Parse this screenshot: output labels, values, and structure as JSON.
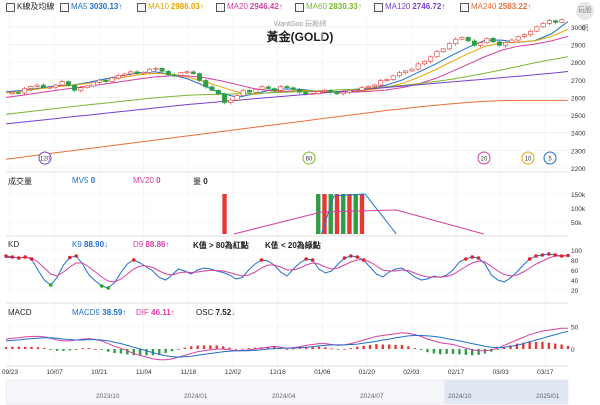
{
  "legend": {
    "title": "K線及均線",
    "items": [
      {
        "name": "MA5",
        "value": "3030.13↑",
        "color": "#1f6fd1",
        "checked": true
      },
      {
        "name": "MA10",
        "value": "2986.03↑",
        "color": "#e6a700",
        "checked": true
      },
      {
        "name": "MA20",
        "value": "2946.42↑",
        "color": "#d6409f",
        "checked": true
      },
      {
        "name": "MA60",
        "value": "2830.33↑",
        "color": "#7cb82f",
        "checked": true
      },
      {
        "name": "MA120",
        "value": "2746.72↑",
        "color": "#7a3fd0",
        "checked": true
      },
      {
        "name": "MA240",
        "value": "2583.22↑",
        "color": "#e8703a",
        "checked": true
      }
    ]
  },
  "header": {
    "site": "WantGoo 玩股網",
    "title": "黃金(GOLD)"
  },
  "logo": {
    "text": "玩股網"
  },
  "price_axis": {
    "ticks": [
      "3000",
      "2900",
      "2800",
      "2700",
      "2600",
      "2500",
      "2400",
      "2300",
      "2200"
    ]
  },
  "markers": [
    {
      "label": "120",
      "color": "#7a3fd0"
    },
    {
      "label": "60",
      "color": "#7cb82f"
    },
    {
      "label": "20",
      "color": "#d6409f"
    },
    {
      "label": "10",
      "color": "#e6a700"
    },
    {
      "label": "5",
      "color": "#1f6fd1"
    }
  ],
  "volume": {
    "label": "成交量",
    "items": [
      {
        "name": "MV5",
        "value": "0",
        "color": "#1f6fd1"
      },
      {
        "name": "MV20",
        "value": "0",
        "color": "#d6409f"
      },
      {
        "name": "量",
        "value": "0",
        "color": "#222222"
      }
    ],
    "axis": [
      "150k",
      "100k",
      "50k"
    ]
  },
  "kd": {
    "label": "KD",
    "items": [
      {
        "name": "K9",
        "value": "88.90↓",
        "color": "#1f6fd1"
      },
      {
        "name": "D9",
        "value": "88.86↑",
        "color": "#d6409f"
      },
      {
        "name": "K值 > 80為紅點",
        "value": "",
        "color": "#222222"
      },
      {
        "name": "K值 < 20為綠點",
        "value": "",
        "color": "#222222"
      }
    ],
    "axis": [
      "100",
      "80",
      "60",
      "40",
      "20"
    ]
  },
  "macd": {
    "label": "MACD",
    "items": [
      {
        "name": "MACD9",
        "value": "38.59↑",
        "color": "#1f6fd1"
      },
      {
        "name": "DIF",
        "value": "46.11↑",
        "color": "#d6409f"
      },
      {
        "name": "OSC",
        "value": "7.52↓",
        "color": "#222222"
      }
    ],
    "axis": [
      "50",
      "0"
    ]
  },
  "dates": [
    "09/23",
    "10/07",
    "10/21",
    "11/04",
    "11/18",
    "12/02",
    "12/16",
    "01/06",
    "01/20",
    "02/03",
    "02/17",
    "03/03",
    "03/17"
  ],
  "periods": [
    "2023/10",
    "2024/01",
    "2024/04",
    "2024/07",
    "2024/10",
    "2025/01"
  ],
  "chart_data": {
    "type": "line",
    "title": "黃金(GOLD)",
    "ylim": [
      2200,
      3050
    ],
    "candles_close": [
      2628,
      2625,
      2650,
      2663,
      2670,
      2657,
      2658,
      2670,
      2690,
      2668,
      2640,
      2655,
      2665,
      2686,
      2698,
      2690,
      2710,
      2725,
      2733,
      2745,
      2735,
      2742,
      2760,
      2765,
      2748,
      2728,
      2724,
      2740,
      2745,
      2735,
      2696,
      2660,
      2640,
      2620,
      2571,
      2585,
      2610,
      2640,
      2630,
      2645,
      2660,
      2650,
      2640,
      2662,
      2655,
      2645,
      2630,
      2620,
      2622,
      2633,
      2640,
      2630,
      2620,
      2630,
      2640,
      2640,
      2655,
      2662,
      2670,
      2695,
      2702,
      2722,
      2740,
      2750,
      2760,
      2790,
      2805,
      2830,
      2860,
      2875,
      2905,
      2930,
      2940,
      2920,
      2895,
      2910,
      2935,
      2915,
      2895,
      2912,
      2925,
      2945,
      2955,
      2975,
      3000,
      3020,
      3035,
      3025,
      3040
    ],
    "series": [
      {
        "name": "MA5",
        "values": [
          2632,
          2640,
          2652,
          2665,
          2670,
          2685,
          2705,
          2722,
          2740,
          2745,
          2730,
          2705,
          2665,
          2625,
          2600,
          2620,
          2642,
          2648,
          2645,
          2632,
          2630,
          2636,
          2650,
          2670,
          2700,
          2745,
          2790,
          2840,
          2885,
          2925,
          2925,
          2912,
          2922,
          2960,
          3030
        ]
      },
      {
        "name": "MA10",
        "values": [
          2625,
          2636,
          2648,
          2660,
          2668,
          2680,
          2695,
          2712,
          2728,
          2736,
          2732,
          2715,
          2690,
          2660,
          2630,
          2618,
          2628,
          2636,
          2640,
          2636,
          2632,
          2633,
          2642,
          2658,
          2680,
          2715,
          2758,
          2805,
          2850,
          2890,
          2910,
          2914,
          2920,
          2945,
          2986
        ]
      },
      {
        "name": "MA20",
        "values": [
          2600,
          2612,
          2626,
          2640,
          2652,
          2664,
          2676,
          2690,
          2704,
          2716,
          2722,
          2722,
          2712,
          2694,
          2672,
          2650,
          2638,
          2634,
          2634,
          2632,
          2630,
          2630,
          2634,
          2642,
          2656,
          2678,
          2708,
          2748,
          2790,
          2832,
          2868,
          2890,
          2902,
          2920,
          2946
        ]
      },
      {
        "name": "MA60",
        "values": [
          2505,
          2515,
          2526,
          2537,
          2548,
          2558,
          2568,
          2578,
          2588,
          2597,
          2605,
          2612,
          2616,
          2618,
          2620,
          2622,
          2626,
          2630,
          2634,
          2638,
          2642,
          2646,
          2652,
          2660,
          2668,
          2678,
          2690,
          2704,
          2720,
          2738,
          2756,
          2776,
          2796,
          2814,
          2830
        ]
      },
      {
        "name": "MA120",
        "values": [
          2450,
          2460,
          2470,
          2480,
          2490,
          2500,
          2510,
          2520,
          2530,
          2540,
          2550,
          2560,
          2568,
          2576,
          2584,
          2592,
          2600,
          2608,
          2616,
          2624,
          2632,
          2640,
          2648,
          2656,
          2664,
          2672,
          2680,
          2688,
          2696,
          2704,
          2712,
          2720,
          2728,
          2737,
          2747
        ]
      },
      {
        "name": "MA240",
        "values": [
          2250,
          2262,
          2274,
          2286,
          2298,
          2310,
          2322,
          2334,
          2346,
          2358,
          2370,
          2382,
          2394,
          2406,
          2418,
          2430,
          2442,
          2454,
          2466,
          2478,
          2490,
          2502,
          2514,
          2526,
          2536,
          2546,
          2556,
          2564,
          2572,
          2578,
          2582,
          2583,
          2583,
          2583,
          2583
        ]
      }
    ],
    "volume_bars": [
      {
        "i": 34,
        "v": 150
      },
      {
        "i": 49,
        "v": 150
      },
      {
        "i": 50,
        "v": 150
      },
      {
        "i": 51,
        "v": 150
      },
      {
        "i": 52,
        "v": 150
      },
      {
        "i": 53,
        "v": 150
      },
      {
        "i": 54,
        "v": 150
      },
      {
        "i": 55,
        "v": 150
      },
      {
        "i": 56,
        "v": 150
      }
    ],
    "kd_k": [
      88,
      86,
      84,
      86,
      82,
      60,
      40,
      30,
      45,
      70,
      85,
      88,
      72,
      50,
      38,
      28,
      24,
      35,
      55,
      72,
      80,
      74,
      66,
      58,
      45,
      40,
      50,
      62,
      58,
      52,
      60,
      64,
      62,
      58,
      55,
      50,
      42,
      45,
      60,
      72,
      80,
      78,
      70,
      56,
      48,
      62,
      74,
      82,
      80,
      62,
      54,
      58,
      72,
      84,
      88,
      86,
      80,
      66,
      52,
      46,
      56,
      62,
      64,
      56,
      46,
      40,
      42,
      48,
      45,
      50,
      60,
      76,
      82,
      86,
      84,
      72,
      50,
      40,
      36,
      44,
      56,
      70,
      82,
      88,
      90,
      92,
      90,
      88,
      89
    ],
    "kd_d": [
      85,
      85,
      85,
      85,
      84,
      76,
      64,
      52,
      48,
      56,
      66,
      74,
      74,
      66,
      56,
      46,
      38,
      36,
      42,
      52,
      62,
      68,
      68,
      65,
      58,
      52,
      50,
      54,
      56,
      55,
      56,
      58,
      59,
      59,
      58,
      55,
      51,
      48,
      50,
      56,
      64,
      70,
      70,
      66,
      60,
      60,
      64,
      70,
      74,
      72,
      66,
      62,
      64,
      70,
      76,
      80,
      81,
      76,
      68,
      60,
      58,
      58,
      60,
      59,
      54,
      49,
      46,
      46,
      46,
      47,
      51,
      59,
      67,
      74,
      78,
      76,
      67,
      58,
      51,
      48,
      50,
      56,
      64,
      72,
      78,
      84,
      88,
      88,
      89
    ],
    "macd_dif": [
      22,
      24,
      25,
      27,
      28,
      28,
      27,
      24,
      20,
      18,
      18,
      20,
      22,
      23,
      21,
      18,
      12,
      6,
      2,
      -4,
      -10,
      -14,
      -18,
      -22,
      -24,
      -24,
      -22,
      -18,
      -14,
      -10,
      -6,
      -4,
      -2,
      0,
      0,
      -2,
      -4,
      -4,
      -2,
      0,
      2,
      4,
      6,
      4,
      2,
      3,
      5,
      8,
      10,
      12,
      12,
      10,
      8,
      9,
      12,
      16,
      20,
      24,
      28,
      30,
      32,
      34,
      36,
      35,
      32,
      28,
      22,
      18,
      14,
      12,
      10,
      6,
      2,
      -2,
      -4,
      -4,
      -2,
      2,
      8,
      14,
      20,
      26,
      32,
      36,
      40,
      42,
      44,
      46,
      46
    ],
    "macd_sig": [
      18,
      19,
      20,
      22,
      23,
      24,
      25,
      25,
      24,
      22,
      21,
      20,
      20,
      21,
      21,
      20,
      18,
      15,
      12,
      8,
      4,
      0,
      -4,
      -8,
      -12,
      -15,
      -17,
      -18,
      -17,
      -16,
      -14,
      -12,
      -10,
      -8,
      -6,
      -5,
      -4,
      -4,
      -4,
      -3,
      -2,
      0,
      1,
      2,
      2,
      2,
      3,
      4,
      5,
      7,
      8,
      9,
      9,
      9,
      10,
      11,
      13,
      15,
      17,
      20,
      22,
      25,
      27,
      29,
      30,
      30,
      29,
      28,
      26,
      23,
      21,
      18,
      15,
      12,
      9,
      6,
      4,
      3,
      4,
      6,
      8,
      12,
      16,
      20,
      24,
      28,
      32,
      36,
      39
    ]
  }
}
